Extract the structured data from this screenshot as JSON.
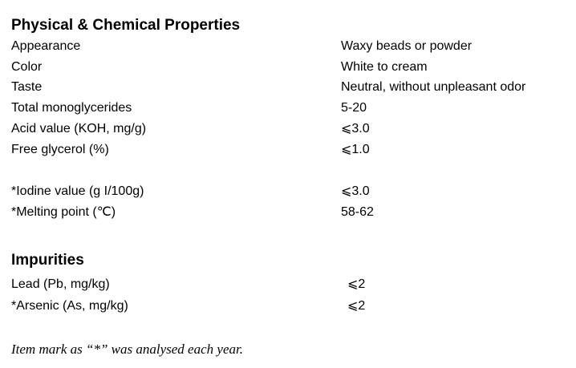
{
  "physical": {
    "heading": "Physical & Chemical Properties",
    "rows": [
      {
        "label": "Appearance",
        "value": "Waxy beads or powder"
      },
      {
        "label": "Color",
        "value": "White to cream"
      },
      {
        "label": "Taste",
        "value": "Neutral, without unpleasant odor"
      },
      {
        "label": "Total monoglycerides",
        "value": "5-20"
      },
      {
        "label": "Acid value (KOH, mg/g)",
        "value": "⩽3.0"
      },
      {
        "label": "Free glycerol (%)",
        "value": "⩽1.0"
      },
      {
        "label": "*Iodine value (g I/100g)",
        "value": "⩽3.0"
      },
      {
        "label": "*Melting point (℃)",
        "value": "58-62"
      }
    ]
  },
  "impurities": {
    "heading": "Impurities",
    "rows": [
      {
        "label": "Lead (Pb, mg/kg)",
        "value": "⩽2"
      },
      {
        "label": "*Arsenic (As, mg/kg)",
        "value": "⩽2"
      }
    ]
  },
  "footnote": "Item mark as “*” was analysed each year."
}
